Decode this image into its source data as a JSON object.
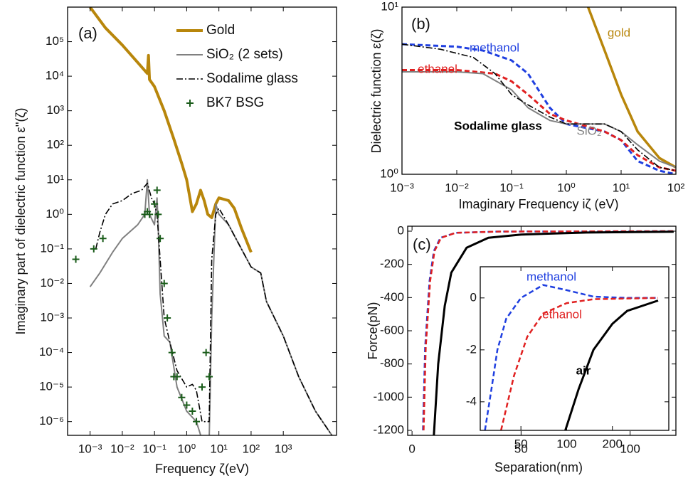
{
  "chart_data": [
    {
      "type": "line",
      "label": "(a)",
      "xlabel": "Frequency ζ(eV)",
      "ylabel": "Imaginary part of dielectric function ε''(ζ)",
      "xscale": "log",
      "yscale": "log",
      "legend": true,
      "legend_corner": "upper right",
      "xlim": [
        0.0002,
        45000
      ],
      "ylim": [
        4e-07,
        1000000
      ],
      "xticks": [
        {
          "value": 0.001,
          "label": "10⁻³"
        },
        {
          "value": 0.01,
          "label": "10⁻²"
        },
        {
          "value": 0.1,
          "label": "10⁻¹"
        },
        {
          "value": 1,
          "label": "10⁰"
        },
        {
          "value": 10,
          "label": "10¹"
        },
        {
          "value": 100,
          "label": "10²"
        },
        {
          "value": 1000,
          "label": "10³"
        }
      ],
      "yticks": [
        {
          "value": 1e-06,
          "label": "10⁻⁶"
        },
        {
          "value": 1e-05,
          "label": "10⁻⁵"
        },
        {
          "value": 0.0001,
          "label": "10⁻⁴"
        },
        {
          "value": 0.001,
          "label": "10⁻³"
        },
        {
          "value": 0.01,
          "label": "10⁻²"
        },
        {
          "value": 0.1,
          "label": "10⁻¹"
        },
        {
          "value": 1,
          "label": "10⁰"
        },
        {
          "value": 10,
          "label": "10¹"
        },
        {
          "value": 100,
          "label": "10²"
        },
        {
          "value": 1000,
          "label": "10³"
        },
        {
          "value": 10000,
          "label": "10⁴"
        },
        {
          "value": 100000,
          "label": "10⁵"
        }
      ],
      "series": [
        {
          "name": "Gold",
          "color": "#b8860b",
          "style": "solid",
          "width": 4,
          "x": [
            0.001,
            0.003,
            0.01,
            0.03,
            0.06,
            0.065,
            0.07,
            0.1,
            0.2,
            0.4,
            0.7,
            1,
            1.5,
            2,
            2.7,
            3.5,
            4.5,
            6,
            8,
            10,
            20,
            30,
            50,
            100
          ],
          "y": [
            1000000,
            250000,
            80000,
            25000,
            12000,
            40000,
            8000,
            5000,
            1000,
            150,
            30,
            10,
            1.2,
            2,
            5,
            2.5,
            1,
            0.8,
            2,
            3,
            2.5,
            1.5,
            0.4,
            0.08
          ]
        },
        {
          "name": "SiO₂ (2 sets)",
          "color": "#808080",
          "style": "solid",
          "width": 2,
          "x": [
            0.001,
            0.002,
            0.005,
            0.01,
            0.03,
            0.05,
            0.06,
            0.07,
            0.1,
            0.12,
            0.13,
            0.15,
            0.2,
            0.3,
            0.5,
            1,
            2,
            3,
            5,
            6,
            8,
            10,
            20,
            50,
            100,
            200,
            300,
            1000,
            3000,
            10000,
            40000
          ],
          "y": [
            0.008,
            0.02,
            0.08,
            0.2,
            0.5,
            1,
            10,
            1,
            0.5,
            3,
            0.5,
            0.005,
            0.0003,
            0.0002,
            1e-05,
            2e-06,
            1e-06,
            3e-07,
            3e-07,
            0.001,
            2,
            1,
            0.5,
            0.1,
            0.03,
            0.02,
            0.003,
            0.0003,
            2e-05,
            2e-06,
            3e-07
          ]
        },
        {
          "name": "Sodalime glass",
          "color": "#000000",
          "style": "dashdot",
          "width": 1.6,
          "x": [
            0.0015,
            0.002,
            0.003,
            0.005,
            0.01,
            0.02,
            0.04,
            0.06,
            0.08,
            0.1,
            0.12,
            0.15,
            0.2,
            0.3,
            0.5,
            1,
            1.5,
            2,
            3,
            5,
            6,
            8,
            10,
            20,
            50,
            100,
            200,
            300,
            1000,
            3000,
            10000,
            40000
          ],
          "y": [
            0.1,
            0.3,
            1,
            2,
            2.5,
            4,
            5,
            8,
            3,
            2,
            1,
            0.05,
            0.001,
            0.0002,
            3e-05,
            1e-05,
            1.2e-05,
            8e-06,
            1e-06,
            1e-06,
            0.05,
            1,
            1.5,
            0.5,
            0.1,
            0.03,
            0.02,
            0.003,
            0.0003,
            2e-05,
            2e-06,
            3e-07
          ]
        },
        {
          "name": "BK7 BSG",
          "color": "#1a5c1a",
          "style": "plus",
          "width": 2,
          "x": [
            0.00036,
            0.0013,
            0.0025,
            0.05,
            0.06,
            0.07,
            0.1,
            0.12,
            0.13,
            0.15,
            0.2,
            0.25,
            0.35,
            0.4,
            0.5,
            0.7,
            1,
            1.5,
            2,
            3,
            4,
            5
          ],
          "y": [
            0.05,
            0.1,
            0.2,
            1,
            1.2,
            1,
            2,
            5,
            1,
            0.2,
            0.01,
            0.001,
            0.0001,
            2e-05,
            2e-05,
            5e-06,
            3e-06,
            2e-06,
            1e-06,
            1e-05,
            0.0001,
            2e-05
          ]
        }
      ]
    },
    {
      "type": "line",
      "label": "(b)",
      "xlabel": "Imaginary Frequency iζ (eV)",
      "ylabel": "Dielectric function ε(ζ)",
      "xscale": "log",
      "yscale": "log",
      "legend": false,
      "xlim": [
        0.001,
        100
      ],
      "ylim": [
        1,
        10
      ],
      "xticks": [
        {
          "value": 0.001,
          "label": "10⁻³"
        },
        {
          "value": 0.01,
          "label": "10⁻²"
        },
        {
          "value": 0.1,
          "label": "10⁻¹"
        },
        {
          "value": 1,
          "label": "10⁰"
        },
        {
          "value": 10,
          "label": "10¹"
        },
        {
          "value": 100,
          "label": "10²"
        }
      ],
      "yticks": [
        {
          "value": 1,
          "label": "10⁰"
        },
        {
          "value": 10,
          "label": "10¹"
        }
      ],
      "series": [
        {
          "name": "gold",
          "color": "#b8860b",
          "style": "solid",
          "width": 3.5,
          "x": [
            2.5,
            5,
            10,
            20,
            50,
            100
          ],
          "y": [
            10,
            5.5,
            3,
            1.8,
            1.25,
            1.1
          ]
        },
        {
          "name": "methanol",
          "color": "#1f3fe0",
          "style": "dashed",
          "width": 3,
          "x": [
            0.001,
            0.01,
            0.03,
            0.1,
            0.2,
            0.5,
            1,
            5,
            10,
            20,
            50,
            100
          ],
          "y": [
            6,
            5.8,
            5.5,
            4.8,
            4,
            2.5,
            2,
            1.8,
            1.6,
            1.2,
            1.05,
            1
          ]
        },
        {
          "name": "ethanol",
          "color": "#e02020",
          "style": "dashed",
          "width": 3,
          "x": [
            0.001,
            0.01,
            0.05,
            0.1,
            0.2,
            0.5,
            1,
            5,
            10,
            20,
            50,
            100
          ],
          "y": [
            4.2,
            4.2,
            4,
            3.6,
            3,
            2.3,
            2.1,
            1.8,
            1.6,
            1.3,
            1.1,
            1.05
          ]
        },
        {
          "name": "SiO₂",
          "color": "#808080",
          "style": "solid",
          "width": 2,
          "x": [
            0.001,
            0.01,
            0.03,
            0.1,
            0.2,
            0.5,
            1,
            5,
            10,
            20,
            50,
            100
          ],
          "y": [
            4.1,
            4.1,
            4,
            3.2,
            2.5,
            2.1,
            2,
            2,
            1.8,
            1.5,
            1.2,
            1.1
          ]
        },
        {
          "name": "Sodalime glass",
          "color": "#000000",
          "style": "dashdot",
          "width": 1.6,
          "x": [
            0.001,
            0.005,
            0.02,
            0.05,
            0.1,
            0.2,
            0.5,
            1,
            5,
            10,
            20,
            50,
            100
          ],
          "y": [
            6,
            5.6,
            5,
            4,
            3,
            2.6,
            2.2,
            2,
            2,
            1.8,
            1.4,
            1.1,
            1.05
          ]
        }
      ]
    },
    {
      "type": "line",
      "label": "(c)",
      "xlabel": "Separation(nm)",
      "ylabel": "Force(pN)",
      "xscale": "linear",
      "yscale": "linear",
      "legend": false,
      "xlim": [
        -2,
        121
      ],
      "ylim": [
        -1230,
        30
      ],
      "xticks": [
        0,
        50,
        100
      ],
      "yticks": [
        0,
        -200,
        -400,
        -600,
        -800,
        -1000,
        -1200
      ],
      "series": [
        {
          "color": "#1f3fe0",
          "style": "dashed",
          "width": 2.5,
          "x": [
            5,
            6,
            8,
            10,
            13,
            20,
            40,
            120
          ],
          "y": [
            -1200,
            -700,
            -300,
            -120,
            -40,
            -10,
            -2,
            0
          ]
        },
        {
          "color": "#e02020",
          "style": "dashed",
          "width": 2.5,
          "x": [
            5.3,
            6.3,
            8.3,
            10.3,
            13.3,
            20,
            40,
            120
          ],
          "y": [
            -1200,
            -700,
            -300,
            -120,
            -40,
            -10,
            -2,
            0
          ]
        },
        {
          "color": "#000000",
          "style": "solid",
          "width": 3,
          "x": [
            10,
            12,
            15,
            18,
            25,
            35,
            50,
            80,
            120
          ],
          "y": [
            -1230,
            -800,
            -450,
            -250,
            -100,
            -40,
            -20,
            -8,
            -3
          ]
        }
      ]
    },
    {
      "type": "line",
      "xscale": "log",
      "yscale": "linear",
      "legend": false,
      "xlim": [
        27,
        470
      ],
      "ylim": [
        -5.1,
        1.2
      ],
      "xticks": [
        50,
        100,
        200
      ],
      "yticks": [
        0,
        -2,
        -4
      ],
      "series": [
        {
          "name": "methanol",
          "color": "#1f3fe0",
          "style": "dashed",
          "width": 2.5,
          "x": [
            29,
            32,
            35,
            40,
            50,
            70,
            100,
            150,
            250,
            400
          ],
          "y": [
            -5.1,
            -3.5,
            -2,
            -0.8,
            0,
            0.5,
            0.3,
            0.05,
            0,
            0
          ]
        },
        {
          "name": "ethanol",
          "color": "#e02020",
          "style": "dashed",
          "width": 2.5,
          "x": [
            37,
            45,
            55,
            70,
            100,
            150,
            400
          ],
          "y": [
            -5.1,
            -3,
            -1.5,
            -0.6,
            -0.2,
            -0.05,
            0
          ]
        },
        {
          "name": "air",
          "color": "#000000",
          "style": "solid",
          "width": 3,
          "x": [
            98,
            120,
            150,
            200,
            250,
            400
          ],
          "y": [
            -5.1,
            -3.5,
            -2,
            -1,
            -0.5,
            -0.1
          ]
        }
      ]
    }
  ]
}
